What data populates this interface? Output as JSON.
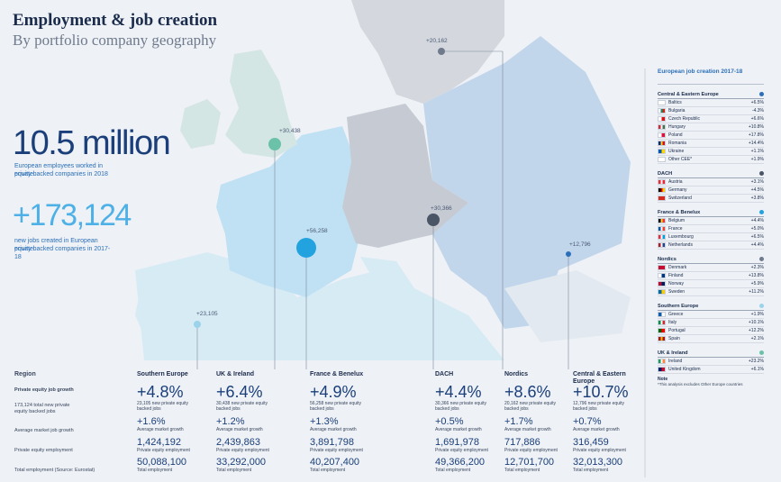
{
  "header": {
    "title": "Employment & job creation",
    "subtitle": "By portfolio company geography"
  },
  "summary": {
    "employees_value": "10.5 million",
    "employees_caption_1": "European employees worked in private",
    "employees_caption_2": "equity backed companies in 2018",
    "jobs_value": "+173,124",
    "jobs_caption_1": "new jobs created in European private",
    "jobs_caption_2": "equity backed companies in 2017-18"
  },
  "map_bubbles": [
    {
      "label": "+30,438",
      "color": "#6bc2a8"
    },
    {
      "label": "+20,162",
      "color": "#6f7a8c"
    },
    {
      "label": "+56,258",
      "color": "#22a3e0"
    },
    {
      "label": "+30,366",
      "color": "#4a5566"
    },
    {
      "label": "+12,796",
      "color": "#2b6fb8"
    },
    {
      "label": "+23,105",
      "color": "#9ad3ea"
    }
  ],
  "colors": {
    "uk": "#d4e6e4",
    "france": "#bfe1f3",
    "dach": "#c5cad3",
    "nordics": "#d4d8de",
    "cee": "#c2d6eb",
    "southern": "#d7ebf5"
  },
  "table": {
    "region_label": "Region",
    "row_labels": {
      "growth": "Private equity job growth",
      "growth_sub_1": "173,124 total new private",
      "growth_sub_2": "equity backed jobs",
      "market_growth": "Average market job growth",
      "pe_employment": "Private equity employment",
      "total_employment": "Total employment (Source: Eurostat)"
    },
    "regions": [
      {
        "name": "Southern Europe",
        "pct": "+4.8%",
        "new_jobs_1": "23,105 new private equity",
        "new_jobs_2": "backed jobs",
        "market": "+1.6%",
        "market_label": "Average market growth",
        "pe_emp": "1,424,192",
        "pe_emp_label": "Private equity employment",
        "total": "50,088,100",
        "total_label": "Total employment"
      },
      {
        "name": "UK & Ireland",
        "pct": "+6.4%",
        "new_jobs_1": "30,438 new private equity",
        "new_jobs_2": "backed jobs",
        "market": "+1.2%",
        "market_label": "Average market growth",
        "pe_emp": "2,439,863",
        "pe_emp_label": "Private equity employment",
        "total": "33,292,000",
        "total_label": "Total employment"
      },
      {
        "name": "France & Benelux",
        "pct": "+4.9%",
        "new_jobs_1": "56,258 new private equity",
        "new_jobs_2": "backed jobs",
        "market": "+1.3%",
        "market_label": "Average market growth",
        "pe_emp": "3,891,798",
        "pe_emp_label": "Private equity employment",
        "total": "40,207,400",
        "total_label": "Total employment"
      },
      {
        "name": "DACH",
        "pct": "+4.4%",
        "new_jobs_1": "30,366 new private equity",
        "new_jobs_2": "backed jobs",
        "market": "+0.5%",
        "market_label": "Average market growth",
        "pe_emp": "1,691,978",
        "pe_emp_label": "Private equity employment",
        "total": "49,366,200",
        "total_label": "Total employment"
      },
      {
        "name": "Nordics",
        "pct": "+8.6%",
        "new_jobs_1": "20,162 new private equity",
        "new_jobs_2": "backed jobs",
        "market": "+1.7%",
        "market_label": "Average market growth",
        "pe_emp": "717,886",
        "pe_emp_label": "Private equity employment",
        "total": "12,701,700",
        "total_label": "Total employment"
      },
      {
        "name": "Central & Eastern Europe",
        "pct": "+10.7%",
        "new_jobs_1": "12,796 new private equity",
        "new_jobs_2": "backed jobs",
        "market": "+0.7%",
        "market_label": "Average market growth",
        "pe_emp": "316,459",
        "pe_emp_label": "Private equity employment",
        "total": "32,013,300",
        "total_label": "Total employment"
      }
    ]
  },
  "sidebar": {
    "title": "European job creation 2017-18",
    "groups": [
      {
        "title": "Central & Eastern Europe",
        "dot": "#2b6fb8",
        "rows": [
          {
            "country": "Baltics",
            "value": "+6.5%",
            "flag": [
              "#ffffff",
              "#ffffff"
            ]
          },
          {
            "country": "Bulgaria",
            "value": "-4.3%",
            "flag": [
              "#ffffff",
              "#00966e",
              "#d62612"
            ]
          },
          {
            "country": "Czech Republic",
            "value": "+6.6%",
            "flag": [
              "#ffffff",
              "#d7141a"
            ]
          },
          {
            "country": "Hungary",
            "value": "+10.8%",
            "flag": [
              "#ce2939",
              "#ffffff",
              "#477050"
            ]
          },
          {
            "country": "Poland",
            "value": "+17.8%",
            "flag": [
              "#ffffff",
              "#dc143c"
            ]
          },
          {
            "country": "Romania",
            "value": "+14.4%",
            "flag": [
              "#002b7f",
              "#fcd116",
              "#ce1126"
            ]
          },
          {
            "country": "Ukraine",
            "value": "+1.1%",
            "flag": [
              "#0057b7",
              "#ffd700"
            ]
          },
          {
            "country": "Other CEE*",
            "value": "+1.9%",
            "flag": [
              "#ffffff",
              "#ffffff"
            ]
          }
        ]
      },
      {
        "title": "DACH",
        "dot": "#4a5566",
        "rows": [
          {
            "country": "Austria",
            "value": "+3.1%",
            "flag": [
              "#ed2939",
              "#ffffff",
              "#ed2939"
            ]
          },
          {
            "country": "Germany",
            "value": "+4.5%",
            "flag": [
              "#000000",
              "#dd0000",
              "#ffce00"
            ]
          },
          {
            "country": "Switzerland",
            "value": "+3.8%",
            "flag": [
              "#d52b1e",
              "#d52b1e"
            ]
          }
        ]
      },
      {
        "title": "France & Benelux",
        "dot": "#22a3e0",
        "rows": [
          {
            "country": "Belgium",
            "value": "+4.4%",
            "flag": [
              "#000000",
              "#fdda24",
              "#ef3340"
            ]
          },
          {
            "country": "France",
            "value": "+5.0%",
            "flag": [
              "#0055a4",
              "#ffffff",
              "#ef4135"
            ]
          },
          {
            "country": "Luxembourg",
            "value": "+6.5%",
            "flag": [
              "#ed2939",
              "#ffffff",
              "#00a1de"
            ]
          },
          {
            "country": "Netherlands",
            "value": "+4.4%",
            "flag": [
              "#ae1c28",
              "#ffffff",
              "#21468b"
            ]
          }
        ]
      },
      {
        "title": "Nordics",
        "dot": "#6f7a8c",
        "rows": [
          {
            "country": "Denmark",
            "value": "+2.3%",
            "flag": [
              "#c60c30",
              "#c60c30"
            ]
          },
          {
            "country": "Finland",
            "value": "+13.8%",
            "flag": [
              "#ffffff",
              "#003580"
            ]
          },
          {
            "country": "Norway",
            "value": "+5.9%",
            "flag": [
              "#ba0c2f",
              "#00205b"
            ]
          },
          {
            "country": "Sweden",
            "value": "+11.2%",
            "flag": [
              "#006aa7",
              "#fecc00"
            ]
          }
        ]
      },
      {
        "title": "Southern Europe",
        "dot": "#9ad3ea",
        "rows": [
          {
            "country": "Greece",
            "value": "+1.9%",
            "flag": [
              "#0d5eaf",
              "#ffffff"
            ]
          },
          {
            "country": "Italy",
            "value": "+10.1%",
            "flag": [
              "#009246",
              "#ffffff",
              "#ce2b37"
            ]
          },
          {
            "country": "Portugal",
            "value": "+12.2%",
            "flag": [
              "#006600",
              "#ff0000"
            ]
          },
          {
            "country": "Spain",
            "value": "+2.1%",
            "flag": [
              "#aa151b",
              "#f1bf00",
              "#aa151b"
            ]
          }
        ]
      },
      {
        "title": "UK & Ireland",
        "dot": "#6bc2a8",
        "rows": [
          {
            "country": "Ireland",
            "value": "+23.2%",
            "flag": [
              "#169b62",
              "#ffffff",
              "#ff883e"
            ]
          },
          {
            "country": "United Kingdom",
            "value": "+6.1%",
            "flag": [
              "#012169",
              "#c8102e"
            ]
          }
        ]
      }
    ],
    "note_title": "Note",
    "note": "*This analysis excludes Other Europe countries"
  }
}
